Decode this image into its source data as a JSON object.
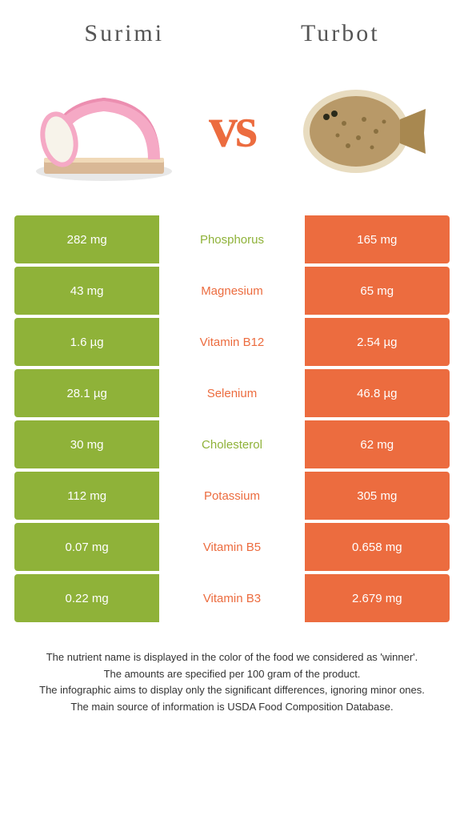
{
  "colors": {
    "left": "#8fb239",
    "right": "#ec6c3f",
    "vs": "#ec6c3f",
    "title": "#555555",
    "footer_text": "#333333"
  },
  "header": {
    "left_title": "Surimi",
    "right_title": "Turbot"
  },
  "vs_label": "vs",
  "nutrients": [
    {
      "name": "Phosphorus",
      "left": "282 mg",
      "right": "165 mg",
      "winner": "left"
    },
    {
      "name": "Magnesium",
      "left": "43 mg",
      "right": "65 mg",
      "winner": "right"
    },
    {
      "name": "Vitamin B12",
      "left": "1.6 µg",
      "right": "2.54 µg",
      "winner": "right"
    },
    {
      "name": "Selenium",
      "left": "28.1 µg",
      "right": "46.8 µg",
      "winner": "right"
    },
    {
      "name": "Cholesterol",
      "left": "30 mg",
      "right": "62 mg",
      "winner": "left"
    },
    {
      "name": "Potassium",
      "left": "112 mg",
      "right": "305 mg",
      "winner": "right"
    },
    {
      "name": "Vitamin B5",
      "left": "0.07 mg",
      "right": "0.658 mg",
      "winner": "right"
    },
    {
      "name": "Vitamin B3",
      "left": "0.22 mg",
      "right": "2.679 mg",
      "winner": "right"
    }
  ],
  "footer_lines": [
    "The nutrient name is displayed in the color of the food we considered as 'winner'.",
    "The amounts are specified per 100 gram of the product.",
    "The infographic aims to display only the significant differences, ignoring minor ones.",
    "The main source of information is USDA Food Composition Database."
  ]
}
